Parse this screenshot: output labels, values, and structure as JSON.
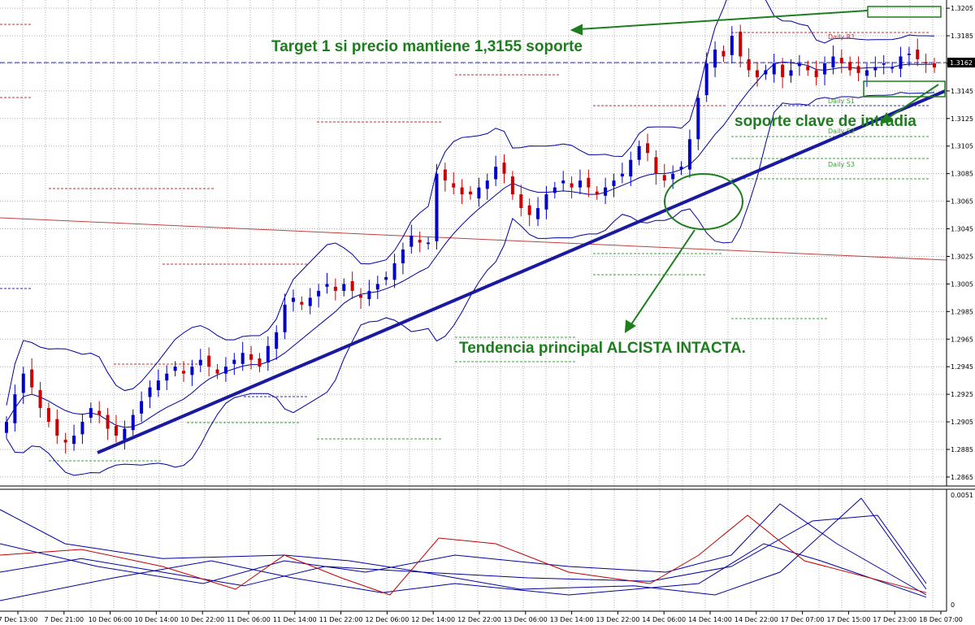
{
  "chart_data": {
    "type": "candlestick",
    "instrument_scale": "EUR/USD",
    "y_ticks": [
      "1.3205",
      "1.3185",
      "1.3165",
      "1.3145",
      "1.3125",
      "1.3105",
      "1.3085",
      "1.3065",
      "1.3045",
      "1.3025",
      "1.3005",
      "1.2985",
      "1.2965",
      "1.2945",
      "1.2925",
      "1.2905",
      "1.2885",
      "1.2865"
    ],
    "ylim": [
      1.2862,
      1.3208
    ],
    "current_price": "1.3162",
    "x_ticks": [
      "7 Dec 13:00",
      "7 Dec 21:00",
      "10 Dec 06:00",
      "10 Dec 14:00",
      "10 Dec 22:00",
      "11 Dec 06:00",
      "11 Dec 14:00",
      "11 Dec 22:00",
      "12 Dec 06:00",
      "12 Dec 14:00",
      "12 Dec 22:00",
      "13 Dec 06:00",
      "13 Dec 14:00",
      "13 Dec 22:00",
      "14 Dec 06:00",
      "14 Dec 14:00",
      "14 Dec 22:00",
      "17 Dec 07:00",
      "17 Dec 15:00",
      "17 Dec 23:00",
      "18 Dec 07:00"
    ],
    "pivot_labels": {
      "r1": "Daily R1",
      "s1": "Daily S1",
      "s2": "Daily S2",
      "s3": "Daily S3"
    },
    "close_prices": [
      1.2905,
      1.2925,
      1.294,
      1.293,
      1.2915,
      1.2905,
      1.2895,
      1.289,
      1.2895,
      1.2905,
      1.2915,
      1.291,
      1.29,
      1.2895,
      1.29,
      1.291,
      1.292,
      1.293,
      1.2935,
      1.294,
      1.2945,
      1.294,
      1.2945,
      1.295,
      1.2945,
      1.294,
      1.2945,
      1.295,
      1.2955,
      1.295,
      1.2945,
      1.296,
      1.297,
      1.299,
      1.2995,
      1.299,
      1.2995,
      1.3,
      1.3005,
      1.3,
      1.3005,
      1.3,
      1.2995,
      1.3,
      1.3005,
      1.301,
      1.302,
      1.303,
      1.304,
      1.3035,
      1.3035,
      1.3085,
      1.308,
      1.3075,
      1.307,
      1.307,
      1.3075,
      1.308,
      1.309,
      1.3085,
      1.307,
      1.306,
      1.3055,
      1.306,
      1.307,
      1.3075,
      1.308,
      1.3075,
      1.308,
      1.3075,
      1.307,
      1.3075,
      1.308,
      1.3085,
      1.3095,
      1.3105,
      1.31,
      1.3085,
      1.308,
      1.3085,
      1.309,
      1.311,
      1.314,
      1.3165,
      1.3175,
      1.317,
      1.3185,
      1.317,
      1.316,
      1.3155,
      1.316,
      1.3165,
      1.3155,
      1.316,
      1.3165,
      1.316,
      1.3155,
      1.3165,
      1.317,
      1.3165,
      1.316,
      1.3158,
      1.316,
      1.3162,
      1.3165,
      1.3162,
      1.317,
      1.3172,
      1.3168,
      1.3165,
      1.3162
    ],
    "annotations": {
      "target": "Target 1 si precio mantiene 1,3155 soporte",
      "support": "soporte clave de intradia",
      "trend": "Tendencia principal ALCISTA INTACTA."
    },
    "indicator": {
      "y_ticks": [
        "0.0051",
        "0"
      ],
      "series_colors": [
        "#0000a0",
        "#c00000"
      ]
    }
  },
  "colors": {
    "bull": "#0000cc",
    "bear": "#cc0000",
    "band": "#0000a0",
    "trendline": "#1a1aa0",
    "annotation": "#1e7d1e",
    "grid": "#b0b0b0"
  }
}
